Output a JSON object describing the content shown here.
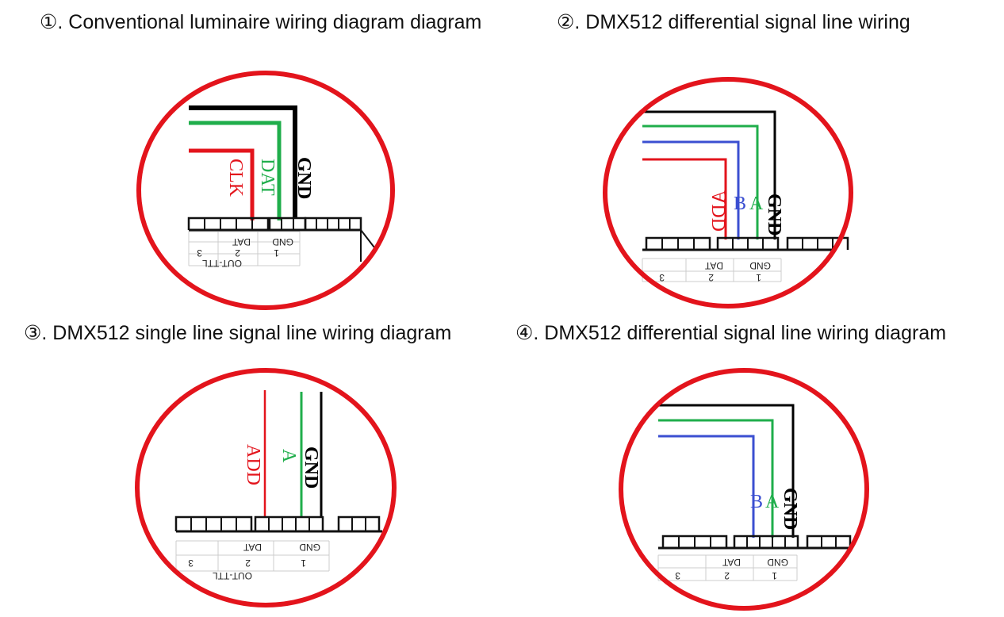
{
  "titles": [
    "①. Conventional luminaire wiring diagram diagram",
    "②. DMX512 differential signal line wiring",
    "③. DMX512 single line signal line wiring diagram",
    "④. DMX512 differential signal line wiring diagram"
  ],
  "colors": {
    "circle": "#e3141c",
    "black": "#000000",
    "green": "#1fae4b",
    "red": "#e3141c",
    "blue": "#3b4fd1"
  },
  "diagram1": {
    "labels": {
      "clk": "CLK",
      "dat": "DAT",
      "gnd": "GND"
    },
    "table": {
      "h1": "GND",
      "h2": "DAT",
      "n1": "1",
      "n2": "2",
      "n3": "3",
      "footer": "OUT-TTL"
    }
  },
  "diagram2": {
    "labels": {
      "add": "ADD",
      "b": "B",
      "a": "A",
      "gnd": "GND"
    },
    "table": {
      "h1": "GND",
      "h2": "DAT",
      "n1": "1",
      "n2": "2",
      "n3": "3"
    }
  },
  "diagram3": {
    "labels": {
      "add": "ADD",
      "a": "A",
      "gnd": "GND"
    },
    "table": {
      "h1": "GND",
      "h2": "DAT",
      "n1": "1",
      "n2": "2",
      "n3": "3",
      "footer": "OUT-TTL"
    }
  },
  "diagram4": {
    "labels": {
      "b": "B",
      "a": "A",
      "gnd": "GND"
    },
    "table": {
      "h1": "GND",
      "h2": "DAT",
      "n1": "1",
      "n2": "2",
      "n3": "3"
    }
  }
}
